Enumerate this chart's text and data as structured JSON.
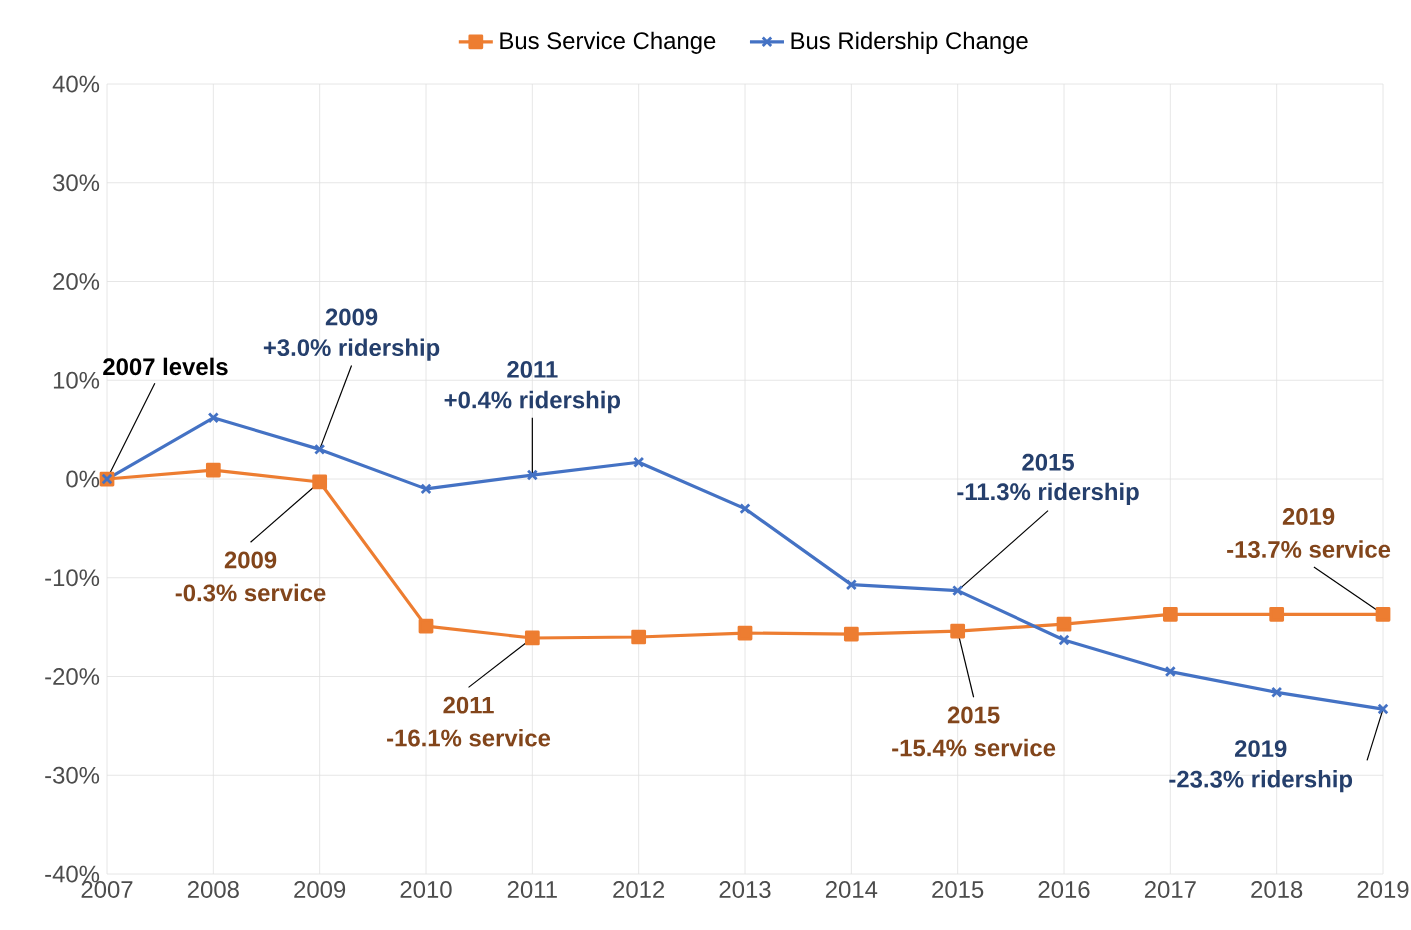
{
  "chart_data": {
    "type": "line",
    "x": [
      2007,
      2008,
      2009,
      2010,
      2011,
      2012,
      2013,
      2014,
      2015,
      2016,
      2017,
      2018,
      2019
    ],
    "series": [
      {
        "name": "Bus Service Change",
        "color": "#ed7d31",
        "marker": "square",
        "values": [
          0,
          0.9,
          -0.3,
          -14.9,
          -16.1,
          -16.0,
          -15.6,
          -15.7,
          -15.4,
          -14.7,
          -13.7,
          -13.7,
          -13.7
        ]
      },
      {
        "name": "Bus Ridership Change",
        "color": "#4472c4",
        "marker": "cross",
        "values": [
          0,
          6.2,
          3.0,
          -1.0,
          0.4,
          1.7,
          -3.0,
          -10.7,
          -11.3,
          -16.3,
          -19.5,
          -21.6,
          -23.3
        ]
      }
    ],
    "xlim": [
      2007,
      2019
    ],
    "xticks": [
      2007,
      2008,
      2009,
      2010,
      2011,
      2012,
      2013,
      2014,
      2015,
      2016,
      2017,
      2018,
      2019
    ],
    "ylim": [
      -40,
      40
    ],
    "yticks": [
      {
        "value": -40,
        "label": "-40%"
      },
      {
        "value": -30,
        "label": "-30%"
      },
      {
        "value": -20,
        "label": "-20%"
      },
      {
        "value": -10,
        "label": "-10%"
      },
      {
        "value": 0,
        "label": "0%"
      },
      {
        "value": 10,
        "label": "10%"
      },
      {
        "value": 20,
        "label": "20%"
      },
      {
        "value": 30,
        "label": "30%"
      },
      {
        "value": 40,
        "label": "40%"
      }
    ],
    "grid": true,
    "legend": "top",
    "line_style": "solid",
    "annotations": [
      {
        "text": "2007 levels",
        "x": 2007,
        "y": 0
      },
      "2009",
      {
        "text": "+3.0% ridership",
        "x": 2009,
        "y": 3.0
      },
      "2011",
      {
        "text": "+0.4% ridership",
        "x": 2011,
        "y": 0.4
      },
      "2015",
      {
        "text": "-11.3% ridership",
        "x": 2015,
        "y": -11.3
      },
      "2019",
      {
        "text": "-23.3% ridership",
        "x": 2019,
        "y": -23.3
      },
      {
        "text": "2009",
        "x": 2009,
        "y": -0.3
      },
      "-0.3% service",
      {
        "text": "2011",
        "x": 2011,
        "y": -16.1
      },
      "-16.1% service",
      {
        "text": "2015",
        "x": 2015,
        "y": -15.4
      },
      "-15.4% service",
      "2019",
      {
        "text": "-13.7% service",
        "x": 2019,
        "y": -13.7
      }
    ]
  }
}
